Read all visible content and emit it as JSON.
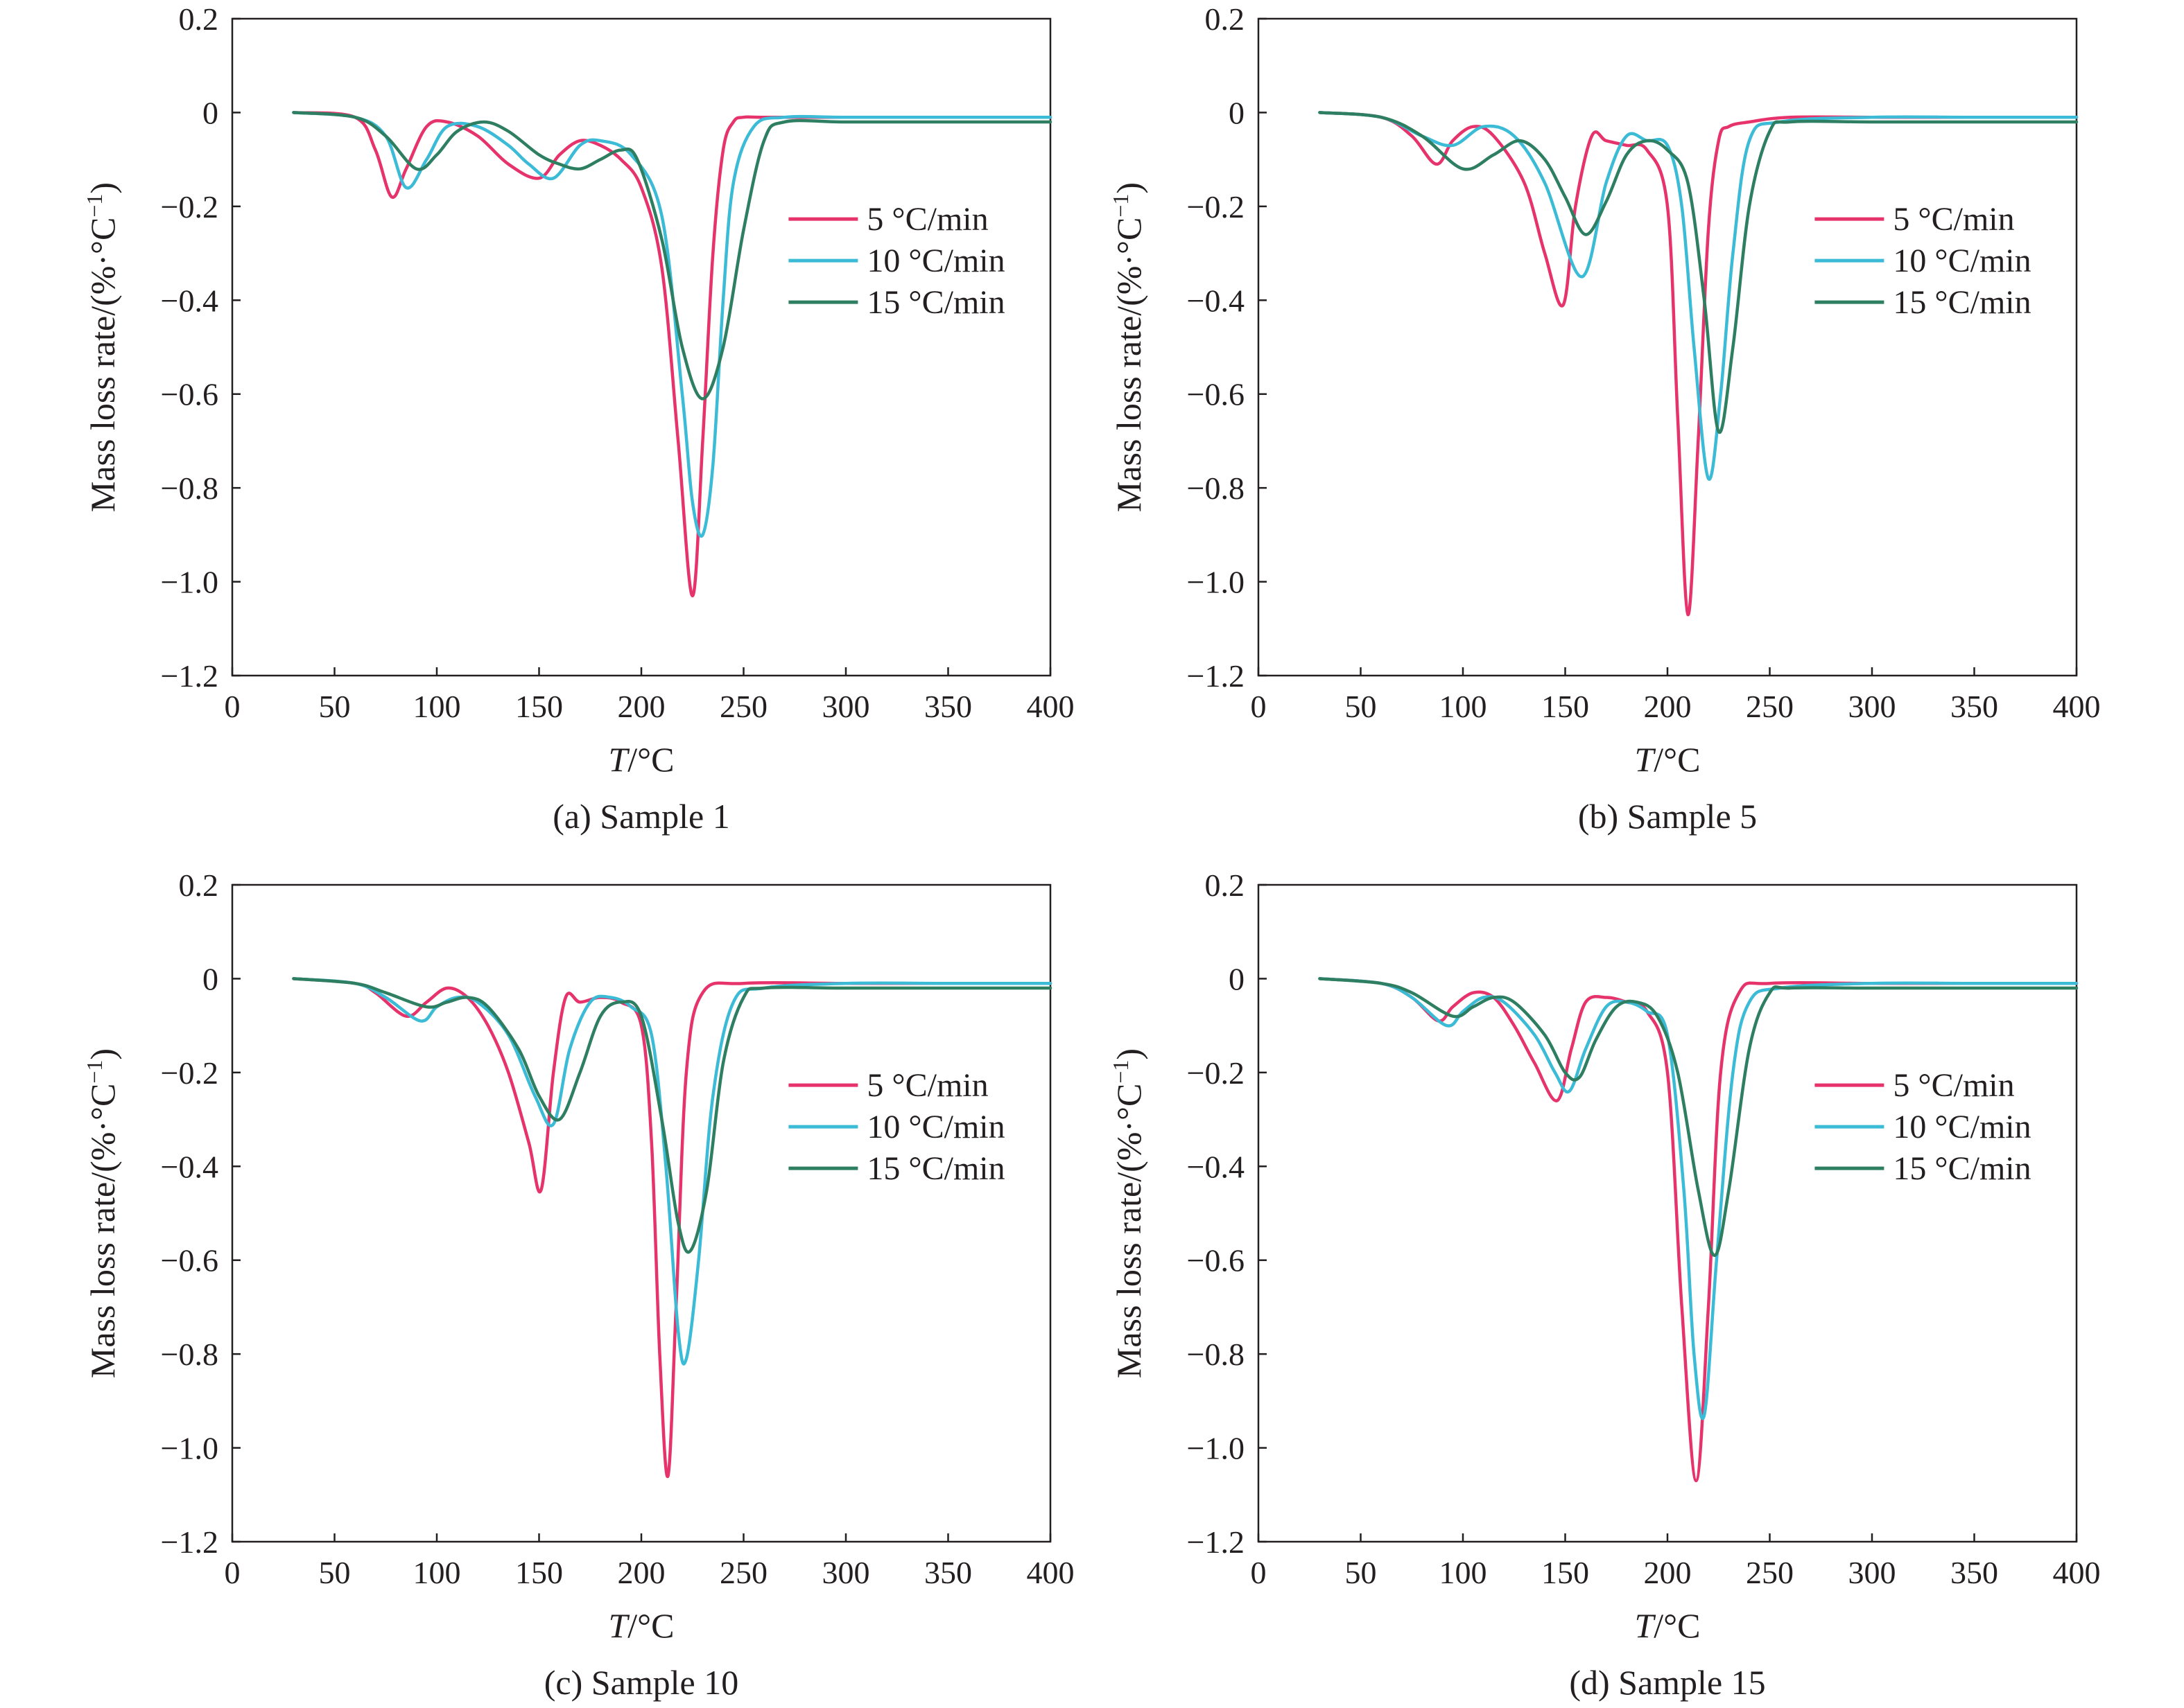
{
  "chart_data": [
    {
      "type": "line",
      "caption": "(a) Sample 1",
      "xlabel_italic": "T",
      "xlabel_unit": "/°C",
      "ylabel_main": "Mass loss rate/(%·°C",
      "ylabel_sup": "−1",
      "ylabel_close": ")",
      "xlim": [
        0,
        400
      ],
      "ylim": [
        -1.2,
        0.2
      ],
      "xticks": [
        0,
        50,
        100,
        150,
        200,
        250,
        300,
        350,
        400
      ],
      "xtick_labels": [
        "0",
        "50",
        "100",
        "150",
        "200",
        "250",
        "300",
        "350",
        "400"
      ],
      "yticks": [
        0.2,
        0,
        -0.2,
        -0.4,
        -0.6,
        -0.8,
        -1.0,
        -1.2
      ],
      "ytick_labels": [
        "0.2",
        "0",
        "−0.2",
        "−0.4",
        "−0.6",
        "−0.8",
        "−1.0",
        "−1.2"
      ],
      "legend_position": "right-middle",
      "series": [
        {
          "name": "5 °C/min",
          "color": "#e6336b",
          "x": [
            30,
            60,
            70,
            78,
            85,
            95,
            105,
            120,
            135,
            150,
            160,
            170,
            180,
            190,
            200,
            210,
            218,
            225,
            230,
            235,
            240,
            245,
            250,
            260,
            300,
            350,
            400
          ],
          "y": [
            0,
            -0.01,
            -0.08,
            -0.18,
            -0.12,
            -0.03,
            -0.02,
            -0.05,
            -0.11,
            -0.14,
            -0.09,
            -0.06,
            -0.07,
            -0.1,
            -0.16,
            -0.33,
            -0.7,
            -1.03,
            -0.7,
            -0.3,
            -0.08,
            -0.02,
            -0.01,
            -0.01,
            -0.01,
            -0.01,
            -0.01
          ]
        },
        {
          "name": "10 °C/min",
          "color": "#3bbbd6",
          "x": [
            30,
            60,
            75,
            85,
            95,
            105,
            120,
            135,
            145,
            157,
            170,
            180,
            195,
            210,
            220,
            225,
            230,
            235,
            240,
            245,
            255,
            270,
            300,
            350,
            400
          ],
          "y": [
            0,
            -0.01,
            -0.05,
            -0.16,
            -0.1,
            -0.03,
            -0.03,
            -0.07,
            -0.11,
            -0.14,
            -0.07,
            -0.06,
            -0.09,
            -0.22,
            -0.6,
            -0.83,
            -0.9,
            -0.75,
            -0.4,
            -0.15,
            -0.03,
            -0.01,
            -0.01,
            -0.01,
            -0.01
          ]
        },
        {
          "name": "15 °C/min",
          "color": "#2e7f62",
          "x": [
            30,
            60,
            75,
            90,
            100,
            110,
            123,
            135,
            150,
            160,
            170,
            180,
            190,
            198,
            210,
            220,
            230,
            240,
            250,
            260,
            270,
            300,
            350,
            400
          ],
          "y": [
            0,
            -0.01,
            -0.05,
            -0.12,
            -0.09,
            -0.04,
            -0.02,
            -0.04,
            -0.09,
            -0.11,
            -0.12,
            -0.1,
            -0.08,
            -0.1,
            -0.27,
            -0.5,
            -0.61,
            -0.5,
            -0.25,
            -0.06,
            -0.02,
            -0.02,
            -0.02,
            -0.02
          ]
        }
      ]
    },
    {
      "type": "line",
      "caption": "(b) Sample 5",
      "xlabel_italic": "T",
      "xlabel_unit": "/°C",
      "ylabel_main": "Mass loss rate/(%·°C",
      "ylabel_sup": "−1",
      "ylabel_close": ")",
      "xlim": [
        0,
        400
      ],
      "ylim": [
        -1.2,
        0.2
      ],
      "xticks": [
        0,
        50,
        100,
        150,
        200,
        250,
        300,
        350,
        400
      ],
      "xtick_labels": [
        "0",
        "50",
        "100",
        "150",
        "200",
        "250",
        "300",
        "350",
        "400"
      ],
      "yticks": [
        0.2,
        0,
        -0.2,
        -0.4,
        -0.6,
        -0.8,
        -1.0,
        -1.2
      ],
      "ytick_labels": [
        "0.2",
        "0",
        "−0.2",
        "−0.4",
        "−0.6",
        "−0.8",
        "−1.0",
        "−1.2"
      ],
      "legend_position": "right-middle",
      "series": [
        {
          "name": "5 °C/min",
          "color": "#e6336b",
          "x": [
            30,
            60,
            75,
            87,
            95,
            105,
            115,
            130,
            140,
            149,
            155,
            163,
            170,
            180,
            190,
            200,
            205,
            210,
            215,
            220,
            225,
            230,
            240,
            260,
            300,
            350,
            400
          ],
          "y": [
            0,
            -0.01,
            -0.05,
            -0.11,
            -0.06,
            -0.03,
            -0.05,
            -0.15,
            -0.3,
            -0.41,
            -0.2,
            -0.05,
            -0.06,
            -0.07,
            -0.08,
            -0.2,
            -0.65,
            -1.07,
            -0.7,
            -0.25,
            -0.06,
            -0.03,
            -0.02,
            -0.01,
            -0.01,
            -0.01,
            -0.01
          ]
        },
        {
          "name": "10 °C/min",
          "color": "#3bbbd6",
          "x": [
            30,
            60,
            80,
            95,
            110,
            125,
            140,
            158,
            170,
            180,
            190,
            200,
            207,
            213,
            220,
            226,
            232,
            240,
            255,
            300,
            350,
            400
          ],
          "y": [
            0,
            -0.01,
            -0.05,
            -0.07,
            -0.03,
            -0.05,
            -0.15,
            -0.35,
            -0.15,
            -0.05,
            -0.06,
            -0.07,
            -0.2,
            -0.5,
            -0.78,
            -0.6,
            -0.3,
            -0.06,
            -0.02,
            -0.01,
            -0.01,
            -0.01
          ]
        },
        {
          "name": "15 °C/min",
          "color": "#2e7f62",
          "x": [
            30,
            60,
            80,
            100,
            115,
            128,
            140,
            150,
            160,
            170,
            180,
            190,
            200,
            210,
            218,
            225,
            232,
            240,
            250,
            260,
            300,
            350,
            400
          ],
          "y": [
            0,
            -0.01,
            -0.05,
            -0.12,
            -0.09,
            -0.06,
            -0.1,
            -0.18,
            -0.26,
            -0.19,
            -0.09,
            -0.06,
            -0.08,
            -0.15,
            -0.4,
            -0.68,
            -0.5,
            -0.2,
            -0.04,
            -0.02,
            -0.02,
            -0.02,
            -0.02
          ]
        }
      ]
    },
    {
      "type": "line",
      "caption": "(c) Sample 10",
      "xlabel_italic": "T",
      "xlabel_unit": "/°C",
      "ylabel_main": "Mass loss rate/(%·°C",
      "ylabel_sup": "−1",
      "ylabel_close": ")",
      "xlim": [
        0,
        400
      ],
      "ylim": [
        -1.2,
        0.2
      ],
      "xticks": [
        0,
        50,
        100,
        150,
        200,
        250,
        300,
        350,
        400
      ],
      "xtick_labels": [
        "0",
        "50",
        "100",
        "150",
        "200",
        "250",
        "300",
        "350",
        "400"
      ],
      "yticks": [
        0.2,
        0,
        -0.2,
        -0.4,
        -0.6,
        -0.8,
        -1.0,
        -1.2
      ],
      "ytick_labels": [
        "0.2",
        "0",
        "−0.2",
        "−0.4",
        "−0.6",
        "−0.8",
        "−1.0",
        "−1.2"
      ],
      "legend_position": "right-middle",
      "series": [
        {
          "name": "5 °C/min",
          "color": "#e6336b",
          "x": [
            30,
            60,
            70,
            85,
            95,
            105,
            115,
            125,
            135,
            145,
            151,
            157,
            163,
            170,
            180,
            190,
            200,
            205,
            209,
            213,
            217,
            222,
            230,
            250,
            300,
            350,
            400
          ],
          "y": [
            0,
            -0.01,
            -0.03,
            -0.08,
            -0.05,
            -0.02,
            -0.04,
            -0.1,
            -0.2,
            -0.35,
            -0.45,
            -0.2,
            -0.04,
            -0.05,
            -0.04,
            -0.05,
            -0.1,
            -0.35,
            -0.8,
            -1.06,
            -0.7,
            -0.2,
            -0.03,
            -0.01,
            -0.01,
            -0.01,
            -0.01
          ]
        },
        {
          "name": "10 °C/min",
          "color": "#3bbbd6",
          "x": [
            30,
            60,
            75,
            92,
            100,
            110,
            120,
            135,
            148,
            157,
            165,
            175,
            185,
            195,
            205,
            212,
            218,
            222,
            228,
            235,
            245,
            260,
            300,
            350,
            400
          ],
          "y": [
            0,
            -0.01,
            -0.04,
            -0.09,
            -0.06,
            -0.04,
            -0.05,
            -0.12,
            -0.25,
            -0.31,
            -0.15,
            -0.05,
            -0.04,
            -0.06,
            -0.12,
            -0.4,
            -0.75,
            -0.81,
            -0.6,
            -0.25,
            -0.05,
            -0.02,
            -0.01,
            -0.01,
            -0.01
          ]
        },
        {
          "name": "15 °C/min",
          "color": "#2e7f62",
          "x": [
            30,
            60,
            75,
            95,
            105,
            115,
            125,
            140,
            150,
            160,
            170,
            180,
            190,
            200,
            210,
            218,
            224,
            232,
            240,
            250,
            260,
            300,
            350,
            400
          ],
          "y": [
            0,
            -0.01,
            -0.03,
            -0.06,
            -0.05,
            -0.04,
            -0.06,
            -0.15,
            -0.25,
            -0.3,
            -0.2,
            -0.08,
            -0.05,
            -0.08,
            -0.3,
            -0.52,
            -0.58,
            -0.45,
            -0.18,
            -0.04,
            -0.02,
            -0.02,
            -0.02,
            -0.02
          ]
        }
      ]
    },
    {
      "type": "line",
      "caption": "(d) Sample 15",
      "xlabel_italic": "T",
      "xlabel_unit": "/°C",
      "ylabel_main": "Mass loss rate/(%·°C",
      "ylabel_sup": "−1",
      "ylabel_close": ")",
      "xlim": [
        0,
        400
      ],
      "ylim": [
        -1.2,
        0.2
      ],
      "xticks": [
        0,
        50,
        100,
        150,
        200,
        250,
        300,
        350,
        400
      ],
      "xtick_labels": [
        "0",
        "50",
        "100",
        "150",
        "200",
        "250",
        "300",
        "350",
        "400"
      ],
      "yticks": [
        0.2,
        0,
        -0.2,
        -0.4,
        -0.6,
        -0.8,
        -1.0,
        -1.2
      ],
      "ytick_labels": [
        "0.2",
        "0",
        "−0.2",
        "−0.4",
        "−0.6",
        "−0.8",
        "−1.0",
        "−1.2"
      ],
      "legend_position": "right-middle",
      "series": [
        {
          "name": "5 °C/min",
          "color": "#e6336b",
          "x": [
            30,
            60,
            75,
            88,
            95,
            105,
            115,
            125,
            135,
            146,
            153,
            160,
            170,
            180,
            190,
            200,
            207,
            214,
            220,
            226,
            235,
            250,
            300,
            350,
            400
          ],
          "y": [
            0,
            -0.01,
            -0.04,
            -0.09,
            -0.06,
            -0.03,
            -0.04,
            -0.1,
            -0.18,
            -0.26,
            -0.15,
            -0.05,
            -0.04,
            -0.05,
            -0.07,
            -0.2,
            -0.7,
            -1.07,
            -0.7,
            -0.2,
            -0.03,
            -0.01,
            -0.01,
            -0.01,
            -0.01
          ]
        },
        {
          "name": "10 °C/min",
          "color": "#3bbbd6",
          "x": [
            30,
            60,
            75,
            92,
            100,
            110,
            120,
            135,
            145,
            152,
            160,
            170,
            180,
            190,
            200,
            208,
            213,
            218,
            224,
            232,
            240,
            255,
            300,
            350,
            400
          ],
          "y": [
            0,
            -0.01,
            -0.04,
            -0.1,
            -0.07,
            -0.04,
            -0.05,
            -0.12,
            -0.2,
            -0.24,
            -0.15,
            -0.06,
            -0.05,
            -0.07,
            -0.12,
            -0.45,
            -0.8,
            -0.93,
            -0.6,
            -0.2,
            -0.05,
            -0.02,
            -0.01,
            -0.01,
            -0.01
          ]
        },
        {
          "name": "15 °C/min",
          "color": "#2e7f62",
          "x": [
            30,
            60,
            75,
            95,
            105,
            115,
            125,
            140,
            150,
            157,
            165,
            175,
            185,
            195,
            205,
            215,
            223,
            230,
            240,
            250,
            260,
            300,
            350,
            400
          ],
          "y": [
            0,
            -0.01,
            -0.03,
            -0.08,
            -0.06,
            -0.04,
            -0.05,
            -0.12,
            -0.2,
            -0.21,
            -0.13,
            -0.06,
            -0.05,
            -0.08,
            -0.2,
            -0.45,
            -0.59,
            -0.45,
            -0.15,
            -0.03,
            -0.02,
            -0.02,
            -0.02,
            -0.02
          ]
        }
      ]
    }
  ]
}
